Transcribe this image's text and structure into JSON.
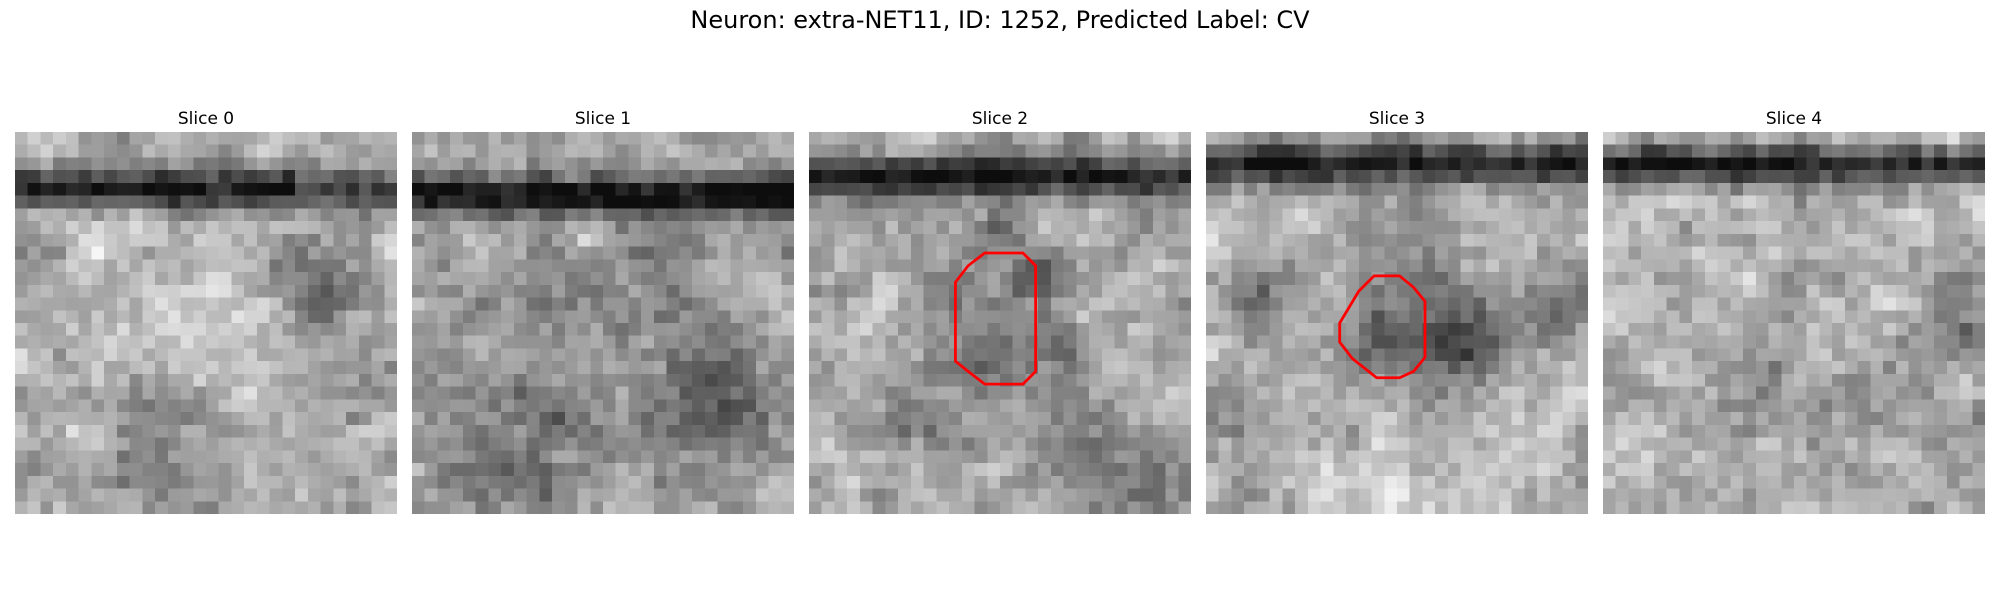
{
  "figure": {
    "suptitle": "Neuron: extra-NET11, ID: 1252, Predicted Label: CV",
    "contour_color": "#ff0000",
    "colormap": "gray",
    "slices": [
      {
        "title": "Slice 0",
        "has_contour": false
      },
      {
        "title": "Slice 1",
        "has_contour": false
      },
      {
        "title": "Slice 2",
        "has_contour": true
      },
      {
        "title": "Slice 3",
        "has_contour": true
      },
      {
        "title": "Slice 4",
        "has_contour": false
      }
    ]
  }
}
